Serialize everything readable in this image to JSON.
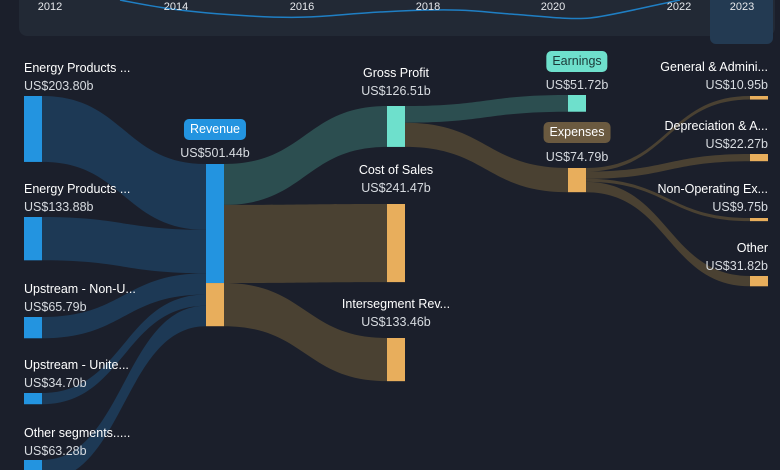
{
  "timeline": {
    "years": [
      "2012",
      "2014",
      "2016",
      "2018",
      "2020",
      "2022",
      "2023"
    ],
    "selected": "2023"
  },
  "chart_data": {
    "type": "sankey",
    "unit": "US$ b",
    "nodes": [
      {
        "id": "ep1",
        "label": "Energy Products ...",
        "value": "US$203.80b",
        "color": "#2394e0"
      },
      {
        "id": "ep2",
        "label": "Energy Products ...",
        "value": "US$133.88b",
        "color": "#2394e0"
      },
      {
        "id": "up1",
        "label": "Upstream - Non-U...",
        "value": "US$65.79b",
        "color": "#2394e0"
      },
      {
        "id": "up2",
        "label": "Upstream - Unite...",
        "value": "US$34.70b",
        "color": "#2394e0"
      },
      {
        "id": "oth",
        "label": "Other segments.....",
        "value": "US$63.28b",
        "color": "#2394e0"
      },
      {
        "id": "rev",
        "label": "Revenue",
        "value": "US$501.44b",
        "color": "#2394e0"
      },
      {
        "id": "gp",
        "label": "Gross Profit",
        "value": "US$126.51b",
        "color": "#6ee0cc"
      },
      {
        "id": "cos",
        "label": "Cost of Sales",
        "value": "US$241.47b",
        "color": "#e8ae5c"
      },
      {
        "id": "isr",
        "label": "Intersegment Rev...",
        "value": "US$133.46b",
        "color": "#e8ae5c"
      },
      {
        "id": "earn",
        "label": "Earnings",
        "value": "US$51.72b",
        "color": "#6ee0cc"
      },
      {
        "id": "exp",
        "label": "Expenses",
        "value": "US$74.79b",
        "color": "#e8ae5c"
      },
      {
        "id": "ga",
        "label": "General & Admini...",
        "value": "US$10.95b",
        "color": "#e8ae5c"
      },
      {
        "id": "dep",
        "label": "Depreciation & A...",
        "value": "US$22.27b",
        "color": "#e8ae5c"
      },
      {
        "id": "nonop",
        "label": "Non-Operating Ex...",
        "value": "US$9.75b",
        "color": "#e8ae5c"
      },
      {
        "id": "other",
        "label": "Other",
        "value": "US$31.82b",
        "color": "#e8ae5c"
      }
    ],
    "links": [
      {
        "source": "ep1",
        "target": "rev",
        "value": 203.8
      },
      {
        "source": "ep2",
        "target": "rev",
        "value": 133.88
      },
      {
        "source": "up1",
        "target": "rev",
        "value": 65.79
      },
      {
        "source": "up2",
        "target": "rev",
        "value": 34.7
      },
      {
        "source": "oth",
        "target": "rev",
        "value": 63.28
      },
      {
        "source": "rev",
        "target": "gp",
        "value": 126.51
      },
      {
        "source": "rev",
        "target": "cos",
        "value": 241.47
      },
      {
        "source": "rev",
        "target": "isr",
        "value": 133.46
      },
      {
        "source": "gp",
        "target": "earn",
        "value": 51.72
      },
      {
        "source": "gp",
        "target": "exp",
        "value": 74.79
      },
      {
        "source": "exp",
        "target": "ga",
        "value": 10.95
      },
      {
        "source": "exp",
        "target": "dep",
        "value": 22.27
      },
      {
        "source": "exp",
        "target": "nonop",
        "value": 9.75
      },
      {
        "source": "exp",
        "target": "other",
        "value": 31.82
      }
    ],
    "colors": {
      "revenue_link": "#1d3b57",
      "profit_link": "#2d5152",
      "cost_link": "#4d4333",
      "background": "#1b1f2b"
    }
  }
}
